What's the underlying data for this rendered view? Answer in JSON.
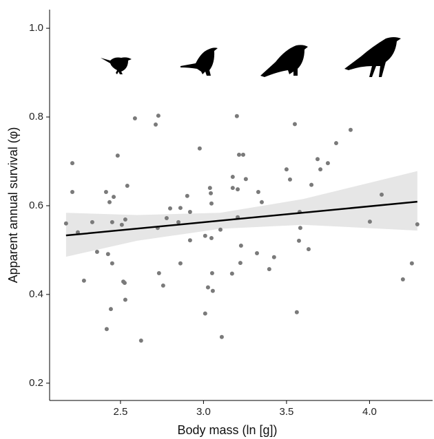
{
  "chart_data": {
    "type": "scatter",
    "x_label": "Body mass (ln [g])",
    "y_label": "Apparent annual survival (φ)",
    "xlim": [
      2.073,
      4.38
    ],
    "ylim": [
      0.161,
      1.042
    ],
    "xticks": [
      2.5,
      {
        "value": 3,
        "label": "3.0"
      },
      3.5,
      {
        "value": 4,
        "label": "4.0"
      }
    ],
    "yticks": [
      {
        "value": 0.2,
        "label": "0.2"
      },
      {
        "value": 0.4,
        "label": "0.4"
      },
      {
        "value": 0.6,
        "label": "0.6"
      },
      {
        "value": 0.8,
        "label": "0.8"
      },
      {
        "value": 1,
        "label": "1.0"
      }
    ],
    "point_color": "#7a7a7a",
    "x": [
      2.172,
      2.21,
      2.21,
      2.243,
      2.28,
      2.33,
      2.359,
      2.413,
      2.417,
      2.425,
      2.434,
      2.45,
      2.45,
      2.442,
      2.459,
      2.483,
      2.508,
      2.517,
      2.525,
      2.529,
      2.529,
      2.541,
      2.587,
      2.624,
      2.712,
      2.728,
      2.724,
      2.732,
      2.757,
      2.778,
      2.799,
      2.849,
      2.861,
      2.861,
      2.902,
      2.919,
      2.919,
      2.977,
      3.01,
      3.01,
      3.027,
      3.039,
      3.044,
      3.048,
      3.048,
      3.052,
      3.056,
      3.102,
      3.11,
      3.172,
      3.176,
      3.176,
      3.201,
      3.206,
      3.206,
      3.214,
      3.239,
      3.222,
      3.226,
      3.255,
      3.322,
      3.33,
      3.351,
      3.396,
      3.425,
      3.5,
      3.521,
      3.55,
      3.562,
      3.575,
      3.583,
      3.579,
      3.633,
      3.65,
      3.687,
      3.704,
      3.749,
      3.799,
      3.886,
      4.002,
      4.073,
      4.201,
      4.255,
      4.288
    ],
    "values": [
      0.56,
      0.696,
      0.631,
      0.54,
      0.431,
      0.563,
      0.496,
      0.631,
      0.322,
      0.491,
      0.608,
      0.563,
      0.47,
      0.367,
      0.62,
      0.713,
      0.557,
      0.429,
      0.426,
      0.569,
      0.388,
      0.645,
      0.797,
      0.296,
      0.783,
      0.803,
      0.55,
      0.448,
      0.42,
      0.572,
      0.594,
      0.563,
      0.595,
      0.47,
      0.622,
      0.586,
      0.522,
      0.729,
      0.532,
      0.357,
      0.416,
      0.64,
      0.628,
      0.527,
      0.605,
      0.448,
      0.408,
      0.546,
      0.304,
      0.447,
      0.665,
      0.64,
      0.802,
      0.637,
      0.574,
      0.715,
      0.715,
      0.471,
      0.51,
      0.66,
      0.493,
      0.631,
      0.608,
      0.457,
      0.484,
      0.682,
      0.659,
      0.784,
      0.36,
      0.521,
      0.55,
      0.586,
      0.502,
      0.647,
      0.705,
      0.682,
      0.696,
      0.741,
      0.771,
      0.564,
      0.625,
      0.434,
      0.47,
      0.558
    ],
    "fit": {
      "color": "#000000",
      "x": [
        2.172,
        4.288
      ],
      "y": [
        0.533,
        0.609
      ]
    },
    "band": {
      "color": "#e6e6e6",
      "x": [
        2.172,
        2.6,
        3.1,
        3.6,
        4.288
      ],
      "upper": [
        0.584,
        0.579,
        0.584,
        0.615,
        0.678
      ],
      "lower": [
        0.485,
        0.521,
        0.548,
        0.557,
        0.544
      ]
    }
  }
}
